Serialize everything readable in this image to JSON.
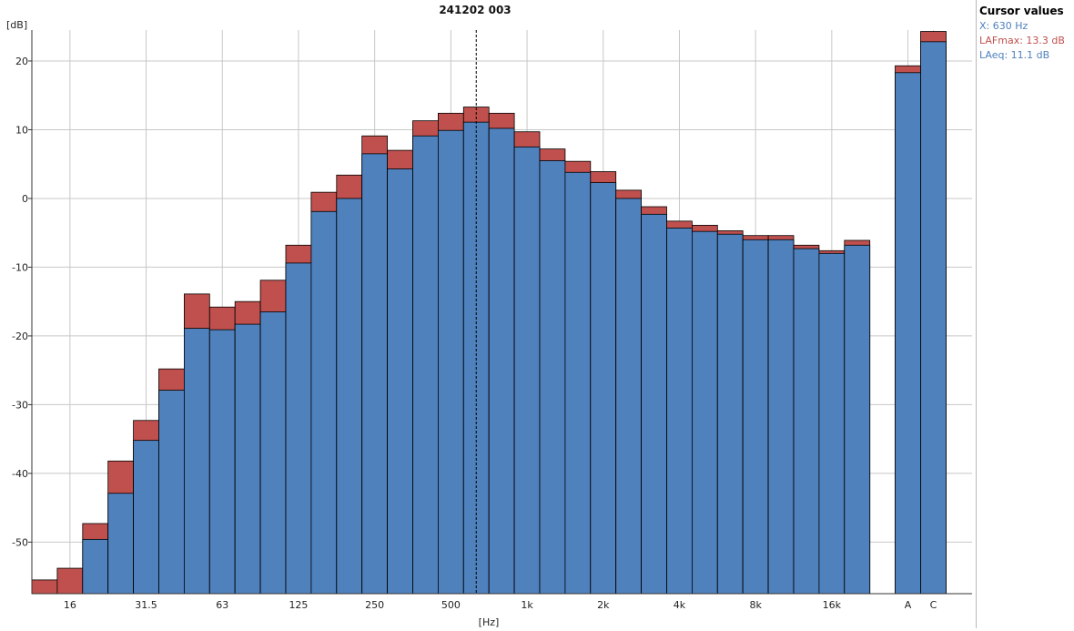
{
  "colors": {
    "laeq": "#4f81bd",
    "lafmax": "#c0504d",
    "grid": "#c8c8c8",
    "axis": "#333333",
    "text": "#222222",
    "panel_x": "#4f81bd",
    "panel_max": "#c0504d",
    "panel_eq": "#4f81bd"
  },
  "cursor_panel": {
    "title": "Cursor values",
    "x": "X: 630 Hz",
    "lafmax": "LAFmax: 13.3 dB",
    "laeq": "LAeq: 11.1 dB"
  },
  "chart_data": {
    "type": "bar",
    "title": "241202 003",
    "xlabel": "[Hz]",
    "ylabel": "[dB]",
    "ylim": [
      -57.5,
      24.5
    ],
    "yticks": [
      20,
      10,
      0,
      -10,
      -20,
      -30,
      -40,
      -50
    ],
    "grid": true,
    "bands": [
      "12.5",
      "16",
      "20",
      "25",
      "31.5",
      "40",
      "50",
      "63",
      "80",
      "100",
      "125",
      "160",
      "200",
      "250",
      "315",
      "400",
      "500",
      "630",
      "800",
      "1k",
      "1.25k",
      "1.6k",
      "2k",
      "2.5k",
      "3.15k",
      "4k",
      "5k",
      "6.3k",
      "8k",
      "10k",
      "12.5k",
      "16k",
      "20k"
    ],
    "xtick_labels": {
      "16": "16",
      "31.5": "31.5",
      "63": "63",
      "125": "125",
      "250": "250",
      "500": "500",
      "1k": "1k",
      "2k": "2k",
      "4k": "4k",
      "8k": "8k",
      "16k": "16k"
    },
    "overall_labels": [
      "A",
      "C"
    ],
    "series": [
      {
        "name": "LAFmax",
        "values": [
          -55.5,
          -53.8,
          -47.3,
          -38.2,
          -32.3,
          -24.8,
          -13.9,
          -15.8,
          -15.0,
          -11.9,
          -6.8,
          0.9,
          3.4,
          9.1,
          7.0,
          11.3,
          12.4,
          13.3,
          12.4,
          9.7,
          7.2,
          5.4,
          3.9,
          1.2,
          -1.2,
          -3.3,
          -3.9,
          -4.7,
          -5.4,
          -5.4,
          -6.8,
          -7.6,
          -6.1
        ],
        "overall": [
          19.3,
          24.3
        ]
      },
      {
        "name": "LAeq",
        "values": [
          -57.5,
          -57.5,
          -49.6,
          -42.9,
          -35.2,
          -27.9,
          -18.9,
          -19.1,
          -18.3,
          -16.5,
          -9.4,
          -1.9,
          0.0,
          6.5,
          4.3,
          9.1,
          9.9,
          11.1,
          10.2,
          7.5,
          5.5,
          3.8,
          2.3,
          0.0,
          -2.3,
          -4.3,
          -4.8,
          -5.2,
          -6.0,
          -6.0,
          -7.3,
          -8.0,
          -6.8
        ],
        "overall": [
          18.3,
          22.8
        ]
      }
    ],
    "cursor": "630"
  }
}
